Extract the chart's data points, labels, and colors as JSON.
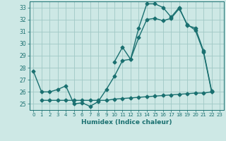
{
  "xlabel": "Humidex (Indice chaleur)",
  "x": [
    0,
    1,
    2,
    3,
    4,
    5,
    6,
    7,
    8,
    9,
    10,
    11,
    12,
    13,
    14,
    15,
    16,
    17,
    18,
    19,
    20,
    21,
    22,
    23
  ],
  "y1": [
    27.7,
    26.0,
    26.0,
    26.2,
    26.5,
    25.0,
    25.1,
    24.8,
    25.2,
    26.2,
    27.3,
    28.6,
    28.7,
    30.5,
    32.0,
    32.1,
    31.9,
    32.1,
    32.9,
    31.6,
    31.1,
    29.3,
    26.0,
    null
  ],
  "y2": [
    null,
    null,
    null,
    null,
    null,
    null,
    null,
    null,
    null,
    null,
    28.5,
    29.7,
    28.7,
    31.3,
    33.3,
    33.3,
    33.0,
    32.2,
    33.0,
    31.5,
    31.3,
    29.4,
    26.1,
    null
  ],
  "y3": [
    null,
    25.3,
    25.3,
    25.3,
    25.3,
    25.3,
    25.3,
    25.3,
    25.3,
    25.3,
    25.4,
    25.45,
    25.5,
    25.55,
    25.6,
    25.65,
    25.7,
    25.75,
    25.8,
    25.85,
    25.9,
    25.9,
    26.0,
    null
  ],
  "background_color": "#cde8e5",
  "grid_color": "#a0c8c5",
  "line_color": "#1a7070",
  "ylim": [
    24.5,
    33.5
  ],
  "yticks": [
    25,
    26,
    27,
    28,
    29,
    30,
    31,
    32,
    33
  ],
  "xlim": [
    -0.5,
    23.5
  ],
  "markersize": 2.5,
  "linewidth": 1.0
}
